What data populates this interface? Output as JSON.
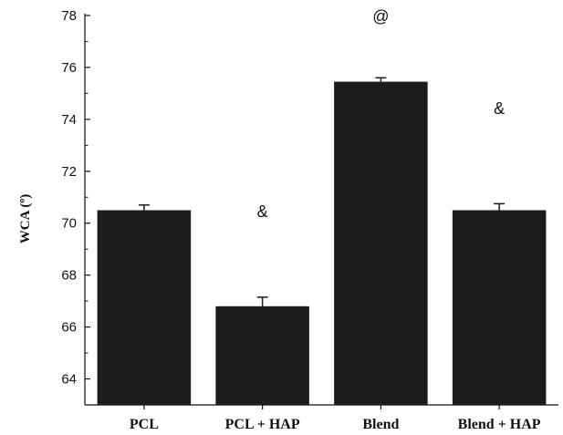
{
  "chart_data": {
    "type": "bar",
    "categories": [
      "PCL",
      "PCL + HAP",
      "Blend",
      "Blend + HAP"
    ],
    "values": [
      70.5,
      66.8,
      75.45,
      70.5
    ],
    "errors": [
      0.2,
      0.35,
      0.15,
      0.25
    ],
    "annotations": [
      "",
      "&",
      "@",
      "&"
    ],
    "title": "",
    "xlabel": "",
    "ylabel": "WCA (º)",
    "ylim": [
      63,
      78
    ],
    "yticks": [
      64,
      66,
      68,
      70,
      72,
      74,
      76,
      78
    ],
    "grid": false,
    "bar_color": "#1c1c1c"
  }
}
